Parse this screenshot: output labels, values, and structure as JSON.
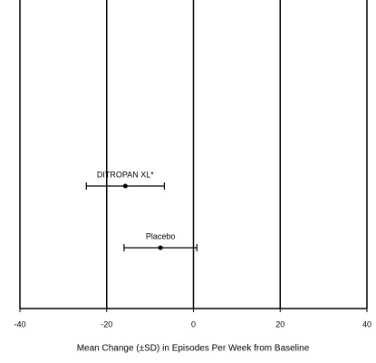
{
  "chart_data": {
    "type": "errorbar",
    "orientation": "horizontal",
    "xlabel": "Mean Change (±SD) in Episodes Per Week from Baseline",
    "categories": [
      "DITROPAN XL*",
      "Placebo"
    ],
    "values": [
      -15.7,
      -7.6
    ],
    "errors": [
      9,
      8.4
    ],
    "color": "#000000",
    "xlim": [
      -40,
      40
    ],
    "xticks": [
      -40,
      -20,
      0,
      20,
      40
    ],
    "grid": true
  }
}
